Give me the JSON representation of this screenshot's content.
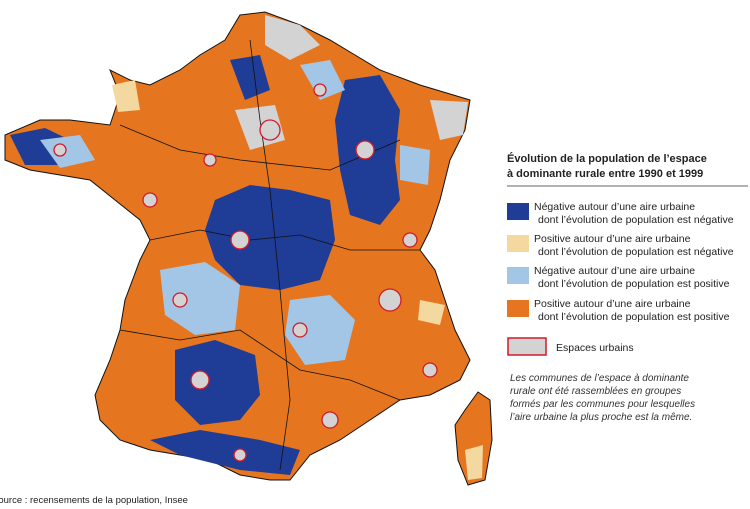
{
  "legend": {
    "title": [
      "Évolution de la population de l’espace",
      "à dominante rurale entre 1990 et 1999"
    ],
    "items": [
      {
        "line1": "Négative autour d’une aire urbaine",
        "line2": "dont l’évolution de population est négative",
        "color": "#1f3c96"
      },
      {
        "line1": "Positive autour d’une aire urbaine",
        "line2": "dont l’évolution de population est négative",
        "color": "#f3d8a0"
      },
      {
        "line1": "Négative autour d’une aire urbaine",
        "line2": "dont l’évolution de population est positive",
        "color": "#a3c6e6"
      },
      {
        "line1": "Positive autour d’une aire urbaine",
        "line2": "dont l’évolution de population est positive",
        "color": "#e5761f"
      }
    ],
    "urban": {
      "label": "Espaces urbains",
      "color": "#d3d3d3",
      "border": "#d11a2a"
    }
  },
  "note": [
    "Les communes de l’espace à dominante",
    "rurale ont été rassemblées en groupes",
    "formés par les communes pour lesquelles",
    "l’aire urbaine la plus proche est la même."
  ],
  "source": "Source : recensements de la population, Insee"
}
